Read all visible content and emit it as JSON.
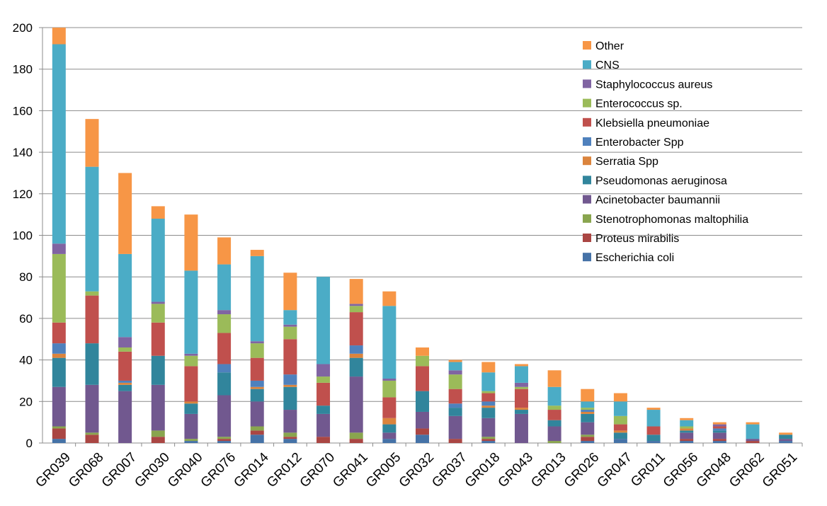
{
  "chart_data": {
    "type": "bar",
    "stacked": true,
    "title": "",
    "xlabel": "",
    "ylabel": "",
    "ylim": [
      0,
      200
    ],
    "yticks": [
      0,
      20,
      40,
      60,
      80,
      100,
      120,
      140,
      160,
      180,
      200
    ],
    "grid": true,
    "legend_position": "right",
    "categories": [
      "GR039",
      "GR068",
      "GR007",
      "GR030",
      "GR040",
      "GR076",
      "GR014",
      "GR012",
      "GR070",
      "GR041",
      "GR005",
      "GR032",
      "GR037",
      "GR018",
      "GR043",
      "GR013",
      "GR026",
      "GR047",
      "GR011",
      "GR056",
      "GR048",
      "GR062",
      "GR051"
    ],
    "series": [
      {
        "name": "Escherichia coli",
        "color": "#4572A7",
        "values": [
          2,
          0,
          0,
          0,
          1,
          1,
          4,
          2,
          0,
          0,
          2,
          4,
          0,
          1,
          0,
          0,
          1,
          2,
          1,
          1,
          1,
          0,
          1
        ]
      },
      {
        "name": "Proteus mirabilis",
        "color": "#AA4643",
        "values": [
          5,
          4,
          0,
          3,
          0,
          1,
          2,
          1,
          3,
          2,
          0,
          3,
          2,
          1,
          0,
          0,
          2,
          0,
          0,
          1,
          1,
          1,
          0
        ]
      },
      {
        "name": "Stenotrophomonas maltophilia",
        "color": "#89A54E",
        "values": [
          1,
          1,
          0,
          3,
          1,
          1,
          2,
          2,
          0,
          3,
          0,
          0,
          0,
          1,
          0,
          1,
          1,
          0,
          0,
          0,
          0,
          0,
          0
        ]
      },
      {
        "name": "Acinetobacter baumannii",
        "color": "#71588F",
        "values": [
          19,
          23,
          25,
          22,
          12,
          20,
          12,
          11,
          11,
          27,
          3,
          8,
          11,
          9,
          14,
          7,
          6,
          0,
          0,
          3,
          3,
          1,
          1
        ]
      },
      {
        "name": "Pseudomonas aeruginosa",
        "color": "#31859C",
        "values": [
          14,
          20,
          3,
          14,
          5,
          11,
          6,
          11,
          4,
          9,
          4,
          10,
          4,
          5,
          2,
          3,
          4,
          3,
          3,
          1,
          1,
          0,
          2
        ]
      },
      {
        "name": "Serratia Spp",
        "color": "#DB843D",
        "values": [
          2,
          0,
          1,
          0,
          1,
          0,
          1,
          1,
          0,
          2,
          3,
          0,
          0,
          1,
          1,
          0,
          1,
          1,
          0,
          1,
          0,
          0,
          0
        ]
      },
      {
        "name": "Enterobacter Spp",
        "color": "#4F81BD",
        "values": [
          5,
          0,
          1,
          0,
          0,
          4,
          3,
          5,
          0,
          4,
          0,
          0,
          2,
          2,
          0,
          0,
          1,
          0,
          0,
          0,
          1,
          0,
          0
        ]
      },
      {
        "name": "Klebsiella pneumoniae",
        "color": "#C0504D",
        "values": [
          10,
          23,
          14,
          16,
          17,
          15,
          11,
          17,
          11,
          16,
          10,
          12,
          7,
          4,
          9,
          5,
          0,
          3,
          4,
          0,
          1,
          0,
          0
        ]
      },
      {
        "name": "Enterococcus sp.",
        "color": "#9BBB59",
        "values": [
          33,
          2,
          2,
          9,
          5,
          9,
          7,
          6,
          3,
          3,
          8,
          5,
          7,
          1,
          1,
          2,
          1,
          4,
          0,
          1,
          0,
          0,
          0
        ]
      },
      {
        "name": "Staphylococcus aureus",
        "color": "#8064A2",
        "values": [
          5,
          0,
          5,
          1,
          1,
          2,
          1,
          1,
          6,
          1,
          1,
          0,
          2,
          0,
          2,
          0,
          0,
          0,
          0,
          0,
          1,
          0,
          0
        ]
      },
      {
        "name": "CNS",
        "color": "#4BACC6",
        "values": [
          96,
          60,
          40,
          40,
          40,
          22,
          41,
          7,
          42,
          0,
          35,
          0,
          4,
          9,
          8,
          9,
          3,
          7,
          8,
          3,
          0,
          7,
          0
        ]
      },
      {
        "name": "Other",
        "color": "#F79646",
        "values": [
          8,
          23,
          39,
          6,
          27,
          13,
          3,
          18,
          0,
          12,
          7,
          4,
          1,
          5,
          1,
          8,
          6,
          4,
          1,
          1,
          1,
          1,
          1
        ]
      }
    ]
  }
}
